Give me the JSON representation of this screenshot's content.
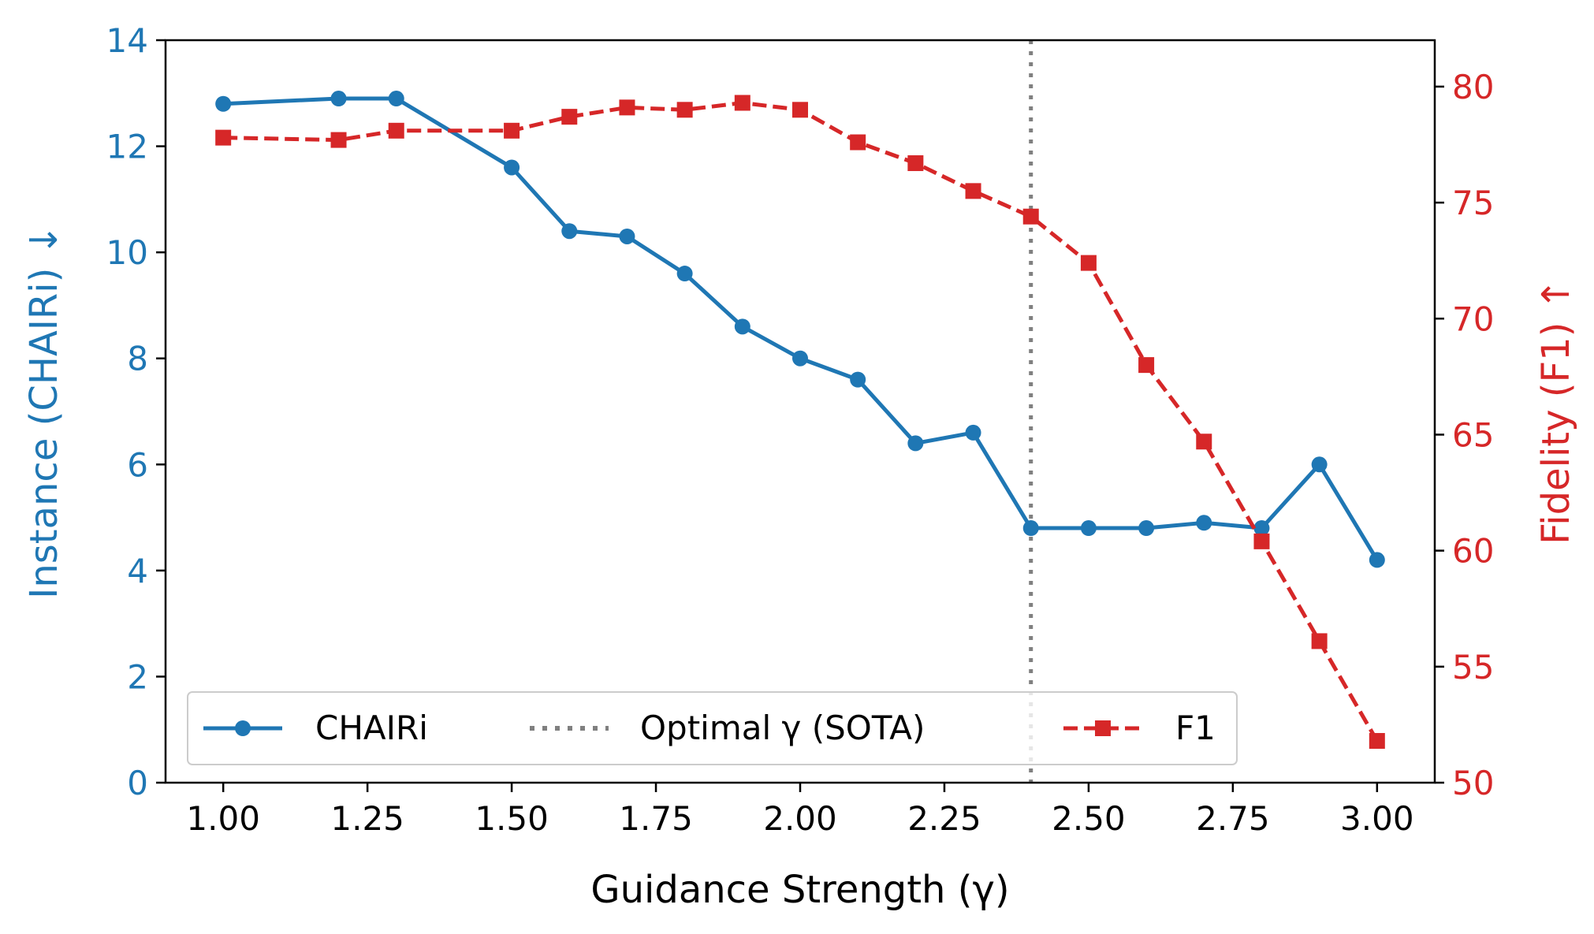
{
  "chart_data": {
    "type": "line",
    "xlabel": "Guidance Strength (γ)",
    "ylabel_left": "Instance (CHAIRi)  ↓",
    "ylabel_right": "Fidelity (F1)  ↑",
    "xlim": [
      0.9,
      3.1
    ],
    "ylim_left": [
      0,
      14
    ],
    "ylim_right": [
      50,
      82
    ],
    "x_ticks": [
      1.0,
      1.25,
      1.5,
      1.75,
      2.0,
      2.25,
      2.5,
      2.75,
      3.0
    ],
    "x_tick_labels": [
      "1.00",
      "1.25",
      "1.50",
      "1.75",
      "2.00",
      "2.25",
      "2.50",
      "2.75",
      "3.00"
    ],
    "y_ticks_left": [
      0,
      2,
      4,
      6,
      8,
      10,
      12,
      14
    ],
    "y_tick_labels_left": [
      "0",
      "2",
      "4",
      "6",
      "8",
      "10",
      "12",
      "14"
    ],
    "y_ticks_right": [
      50,
      55,
      60,
      65,
      70,
      75,
      80
    ],
    "y_tick_labels_right": [
      "50",
      "55",
      "60",
      "65",
      "70",
      "75",
      "80"
    ],
    "grid": false,
    "legend_position": "lower-left",
    "series": [
      {
        "name": "CHAIRi",
        "axis": "left",
        "color": "#1f77b4",
        "style": "solid",
        "marker": "circle",
        "x": [
          1.0,
          1.2,
          1.3,
          1.5,
          1.6,
          1.7,
          1.8,
          1.9,
          2.0,
          2.1,
          2.2,
          2.3,
          2.4,
          2.5,
          2.6,
          2.7,
          2.8,
          2.9,
          3.0
        ],
        "values": [
          12.8,
          12.9,
          12.9,
          11.6,
          10.4,
          10.3,
          9.6,
          8.6,
          8.0,
          7.6,
          6.4,
          6.6,
          4.8,
          4.8,
          4.8,
          4.9,
          4.8,
          6.0,
          4.2
        ]
      },
      {
        "name": "F1",
        "axis": "right",
        "color": "#d62728",
        "style": "dashed",
        "marker": "square",
        "x": [
          1.0,
          1.2,
          1.3,
          1.5,
          1.6,
          1.7,
          1.8,
          1.9,
          2.0,
          2.1,
          2.2,
          2.3,
          2.4,
          2.5,
          2.6,
          2.7,
          2.8,
          2.9,
          3.0
        ],
        "values": [
          77.8,
          77.7,
          78.1,
          78.1,
          78.7,
          79.1,
          79.0,
          79.3,
          79.0,
          77.6,
          76.7,
          75.5,
          74.4,
          72.4,
          68.0,
          64.7,
          60.4,
          56.1,
          51.8
        ]
      }
    ],
    "reference_line": {
      "name": "Optimal γ (SOTA)",
      "x": 2.4,
      "color": "#808080",
      "style": "dotted"
    },
    "legend_entries": [
      "CHAIRi",
      "Optimal γ (SOTA)",
      "F1"
    ]
  }
}
